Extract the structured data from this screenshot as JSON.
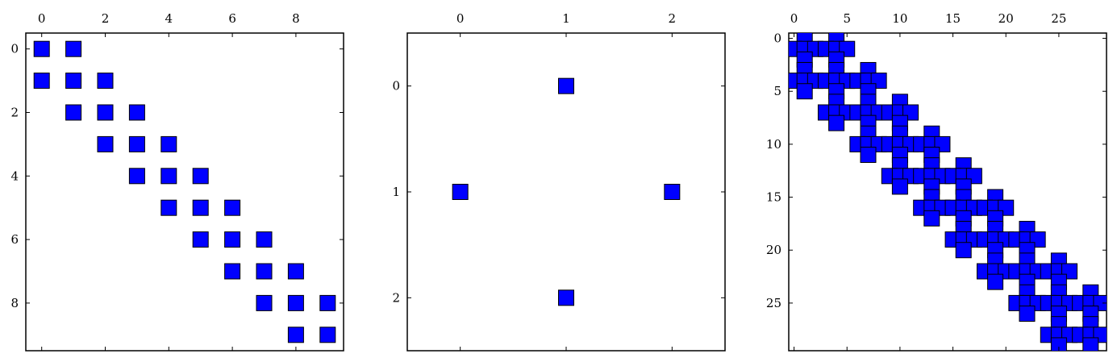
{
  "chart_data": [
    {
      "type": "spy",
      "marker_color": "#0000ff",
      "xlim": [
        -0.5,
        9.5
      ],
      "ylim": [
        -0.5,
        9.5
      ],
      "x_ticks": [
        0,
        2,
        4,
        6,
        8
      ],
      "y_ticks": [
        0,
        2,
        4,
        6,
        8
      ],
      "x_tick_labels": [
        "0",
        "2",
        "4",
        "6",
        "8"
      ],
      "y_tick_labels": [
        "0",
        "2",
        "4",
        "6",
        "8"
      ],
      "pattern": "tridiagonal",
      "n": 10,
      "offsets": [
        -1,
        0,
        1
      ],
      "points": []
    },
    {
      "type": "spy",
      "marker_color": "#0000ff",
      "xlim": [
        -0.5,
        2.5
      ],
      "ylim": [
        -0.5,
        2.5
      ],
      "x_ticks": [
        0,
        1,
        2
      ],
      "y_ticks": [
        0,
        1,
        2
      ],
      "x_tick_labels": [
        "0",
        "1",
        "2"
      ],
      "y_tick_labels": [
        "0",
        "1",
        "2"
      ],
      "points": [
        [
          1,
          0
        ],
        [
          0,
          1
        ],
        [
          2,
          1
        ],
        [
          1,
          2
        ]
      ]
    },
    {
      "type": "spy",
      "marker_color": "#0000ff",
      "xlim": [
        -0.5,
        29.5
      ],
      "ylim": [
        -0.5,
        29.5
      ],
      "x_ticks": [
        0,
        5,
        10,
        15,
        20,
        25
      ],
      "y_ticks": [
        0,
        5,
        10,
        15,
        20,
        25
      ],
      "x_tick_labels": [
        "0",
        "5",
        "10",
        "15",
        "20",
        "25"
      ],
      "y_tick_labels": [
        "0",
        "5",
        "10",
        "15",
        "20",
        "25"
      ],
      "pattern": "block-cross-stencil",
      "n": 30,
      "block_size": 3,
      "points": []
    }
  ]
}
